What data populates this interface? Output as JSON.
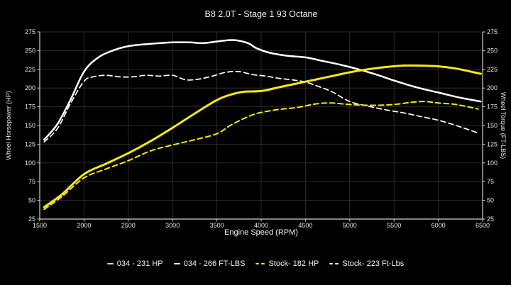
{
  "title": "B8 2.0T - Stage 1 93 Octane",
  "colors": {
    "background": "#000000",
    "accent_yellow": "#f7e714",
    "accent_white": "#ffffff",
    "grid": "#2b2b2b",
    "axis": "#cfcfcf",
    "text": "#e6e6e6"
  },
  "chart_data": {
    "type": "line",
    "title": "B8 2.0T - Stage 1 93 Octane",
    "xlabel": "Engine Speed (RPM)",
    "ylabel_left": "Wheel Horsepower (HP)",
    "ylabel_right": "Wheel Torque (FT-LBS)",
    "xlim": [
      1500,
      6500
    ],
    "ylim": [
      25,
      275
    ],
    "x_tick_step": 500,
    "y_tick_step": 25,
    "x_ticks": [
      1500,
      2000,
      2500,
      3000,
      3500,
      4000,
      4500,
      5000,
      5500,
      6000,
      6500
    ],
    "y_ticks": [
      25,
      50,
      75,
      100,
      125,
      150,
      175,
      200,
      225,
      250,
      275
    ],
    "grid": true,
    "legend_position": "bottom",
    "series": [
      {
        "id": "tuned-hp",
        "name": "034 - 231 HP",
        "color": "#f7e714",
        "line": "solid",
        "axis": "left",
        "peak": 231,
        "points": [
          [
            1550,
            41
          ],
          [
            1750,
            58
          ],
          [
            2000,
            85
          ],
          [
            2250,
            99
          ],
          [
            2500,
            113
          ],
          [
            2750,
            129
          ],
          [
            3000,
            147
          ],
          [
            3250,
            166
          ],
          [
            3500,
            184
          ],
          [
            3650,
            191
          ],
          [
            3800,
            195
          ],
          [
            4000,
            196
          ],
          [
            4200,
            201
          ],
          [
            4400,
            206
          ],
          [
            4600,
            211
          ],
          [
            4800,
            216
          ],
          [
            5000,
            221
          ],
          [
            5200,
            225
          ],
          [
            5400,
            228
          ],
          [
            5600,
            230
          ],
          [
            5800,
            230
          ],
          [
            6000,
            229
          ],
          [
            6200,
            226
          ],
          [
            6480,
            219
          ]
        ]
      },
      {
        "id": "tuned-torque",
        "name": "034 - 266 FT-LBS",
        "color": "#ffffff",
        "line": "solid",
        "axis": "right",
        "peak": 266,
        "points": [
          [
            1550,
            131
          ],
          [
            1700,
            152
          ],
          [
            1850,
            185
          ],
          [
            2000,
            222
          ],
          [
            2150,
            240
          ],
          [
            2300,
            249
          ],
          [
            2500,
            256
          ],
          [
            2750,
            259
          ],
          [
            3000,
            261
          ],
          [
            3200,
            261
          ],
          [
            3350,
            260
          ],
          [
            3550,
            263
          ],
          [
            3700,
            264
          ],
          [
            3850,
            260
          ],
          [
            3950,
            253
          ],
          [
            4100,
            247
          ],
          [
            4300,
            243
          ],
          [
            4500,
            241
          ],
          [
            4700,
            236
          ],
          [
            4900,
            231
          ],
          [
            5100,
            225
          ],
          [
            5300,
            218
          ],
          [
            5500,
            210
          ],
          [
            5750,
            201
          ],
          [
            6000,
            194
          ],
          [
            6250,
            187
          ],
          [
            6480,
            182
          ]
        ]
      },
      {
        "id": "stock-hp",
        "name": "Stock- 182 HP",
        "color": "#f7e714",
        "line": "dashed",
        "axis": "left",
        "peak": 182,
        "points": [
          [
            1550,
            38
          ],
          [
            1750,
            55
          ],
          [
            2000,
            80
          ],
          [
            2250,
            92
          ],
          [
            2500,
            103
          ],
          [
            2750,
            116
          ],
          [
            3000,
            124
          ],
          [
            3250,
            131
          ],
          [
            3500,
            139
          ],
          [
            3650,
            150
          ],
          [
            3800,
            159
          ],
          [
            3950,
            166
          ],
          [
            4175,
            171
          ],
          [
            4400,
            174
          ],
          [
            4630,
            179
          ],
          [
            4800,
            180
          ],
          [
            5000,
            178
          ],
          [
            5250,
            177
          ],
          [
            5500,
            178
          ],
          [
            5700,
            181
          ],
          [
            5850,
            182
          ],
          [
            6000,
            180
          ],
          [
            6200,
            178
          ],
          [
            6450,
            172
          ]
        ]
      },
      {
        "id": "stock-torque",
        "name": "Stock- 223 Ft-Lbs",
        "color": "#ffffff",
        "line": "dashed",
        "axis": "right",
        "peak": 223,
        "points": [
          [
            1550,
            128
          ],
          [
            1700,
            146
          ],
          [
            1850,
            180
          ],
          [
            2000,
            209
          ],
          [
            2100,
            215
          ],
          [
            2250,
            217
          ],
          [
            2400,
            215
          ],
          [
            2550,
            215
          ],
          [
            2700,
            217
          ],
          [
            2850,
            216
          ],
          [
            3000,
            217
          ],
          [
            3150,
            211
          ],
          [
            3300,
            212
          ],
          [
            3450,
            216
          ],
          [
            3600,
            221
          ],
          [
            3750,
            222
          ],
          [
            3900,
            218
          ],
          [
            4050,
            216
          ],
          [
            4200,
            213
          ],
          [
            4350,
            211
          ],
          [
            4500,
            208
          ],
          [
            4650,
            202
          ],
          [
            4800,
            195
          ],
          [
            5000,
            182
          ],
          [
            5200,
            176
          ],
          [
            5400,
            171
          ],
          [
            5600,
            167
          ],
          [
            5800,
            162
          ],
          [
            6000,
            157
          ],
          [
            6200,
            150
          ],
          [
            6450,
            140
          ]
        ]
      }
    ]
  }
}
